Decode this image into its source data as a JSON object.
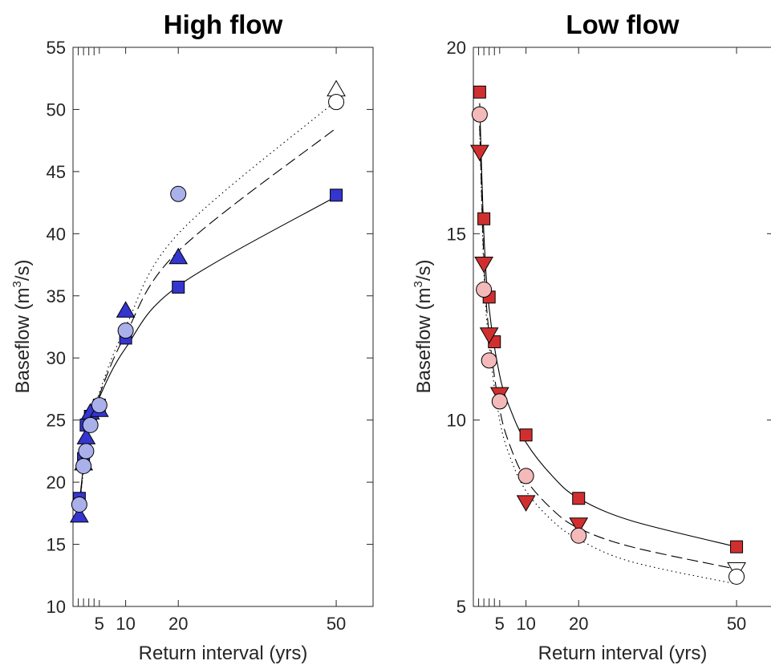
{
  "chart_data": [
    {
      "type": "scatter",
      "title": "High flow",
      "xlabel": "Return interval (yrs)",
      "ylabel_main": "Baseflow (m",
      "ylabel_sup": "3",
      "ylabel_tail": "/s)",
      "xlim": [
        0,
        57
      ],
      "ylim": [
        10,
        55
      ],
      "xticks": [
        5,
        10,
        20,
        50
      ],
      "xminor": [
        1,
        2,
        3,
        4
      ],
      "yticks": [
        10,
        15,
        20,
        25,
        30,
        35,
        40,
        45,
        50,
        55
      ],
      "points": [
        {
          "marker": "square",
          "color": "#3535d0",
          "x": [
            1.2,
            2,
            2.5,
            3.3,
            5,
            10,
            20,
            50
          ],
          "y": [
            18.7,
            21.9,
            24.6,
            25.3,
            26.2,
            31.6,
            35.7,
            43.1
          ]
        },
        {
          "marker": "triangle-up",
          "color": "#3535d0",
          "x": [
            1.2,
            2,
            2.5,
            3.3,
            5,
            10,
            20
          ],
          "y": [
            17.3,
            21.5,
            23.6,
            25.6,
            25.8,
            33.8,
            38.1
          ]
        },
        {
          "marker": "triangle-up",
          "color": "#ffffff",
          "x": [
            50
          ],
          "y": [
            51.6
          ]
        },
        {
          "marker": "circle",
          "color": "#aab0ea",
          "x": [
            1.2,
            2,
            2.5,
            3.3,
            5,
            10,
            20
          ],
          "y": [
            18.2,
            21.3,
            22.5,
            24.6,
            26.2,
            32.2,
            43.2
          ]
        },
        {
          "marker": "circle",
          "color": "#ffffff",
          "x": [
            50
          ],
          "y": [
            50.6
          ]
        }
      ],
      "fits": [
        {
          "style": "solid",
          "x": [
            1.2,
            2,
            3,
            5,
            10,
            20,
            50
          ],
          "y": [
            18.3,
            21.3,
            24.0,
            26.8,
            30.8,
            35.8,
            43.0
          ]
        },
        {
          "style": "dashed",
          "x": [
            1.2,
            2,
            3,
            5,
            10,
            20,
            50
          ],
          "y": [
            18.0,
            21.1,
            24.0,
            27.0,
            31.9,
            38.6,
            48.5
          ]
        },
        {
          "style": "dotted",
          "x": [
            1.2,
            2,
            3,
            5,
            10,
            20,
            50
          ],
          "y": [
            17.8,
            21.0,
            24.0,
            27.2,
            32.5,
            40.0,
            50.7
          ]
        }
      ]
    },
    {
      "type": "scatter",
      "title": "Low flow",
      "xlabel": "Return interval (yrs)",
      "ylabel_main": "Baseflow (m",
      "ylabel_sup": "3",
      "ylabel_tail": "/s)",
      "xlim": [
        0,
        57
      ],
      "ylim": [
        5,
        20
      ],
      "xticks": [
        5,
        10,
        20,
        50
      ],
      "xminor": [
        1,
        2,
        3,
        4
      ],
      "yticks": [
        5,
        10,
        15,
        20
      ],
      "points": [
        {
          "marker": "square",
          "color": "#d12f2f",
          "x": [
            1.2,
            2,
            3,
            4,
            10,
            20,
            50
          ],
          "y": [
            18.8,
            15.4,
            13.3,
            12.1,
            9.6,
            7.9,
            6.6
          ]
        },
        {
          "marker": "triangle-down",
          "color": "#d12f2f",
          "x": [
            1.2,
            2,
            3,
            5,
            10,
            20
          ],
          "y": [
            17.2,
            14.2,
            12.3,
            10.7,
            7.8,
            7.2
          ]
        },
        {
          "marker": "triangle-down",
          "color": "#ffffff",
          "x": [
            50
          ],
          "y": [
            6.0
          ]
        },
        {
          "marker": "circle",
          "color": "#f4b9b9",
          "x": [
            1.2,
            2,
            3,
            5,
            10,
            20
          ],
          "y": [
            18.2,
            13.5,
            11.6,
            10.5,
            8.5,
            6.9
          ]
        },
        {
          "marker": "circle",
          "color": "#ffffff",
          "x": [
            50
          ],
          "y": [
            5.8
          ]
        }
      ],
      "fits": [
        {
          "style": "solid",
          "x": [
            1.2,
            2,
            3,
            5,
            7,
            10,
            15,
            20,
            30,
            50
          ],
          "y": [
            18.5,
            15.0,
            13.0,
            11.2,
            10.3,
            9.4,
            8.5,
            7.9,
            7.3,
            6.6
          ]
        },
        {
          "style": "dashed",
          "x": [
            1.2,
            2,
            3,
            5,
            7,
            10,
            15,
            20,
            30,
            50
          ],
          "y": [
            17.9,
            14.3,
            12.3,
            10.3,
            9.3,
            8.4,
            7.6,
            7.1,
            6.6,
            6.0
          ]
        },
        {
          "style": "dotted",
          "x": [
            1.2,
            2,
            3,
            5,
            7,
            10,
            15,
            20,
            30,
            50
          ],
          "y": [
            17.8,
            14.0,
            12.0,
            10.0,
            9.0,
            8.1,
            7.3,
            6.8,
            6.2,
            5.6
          ]
        }
      ]
    }
  ]
}
